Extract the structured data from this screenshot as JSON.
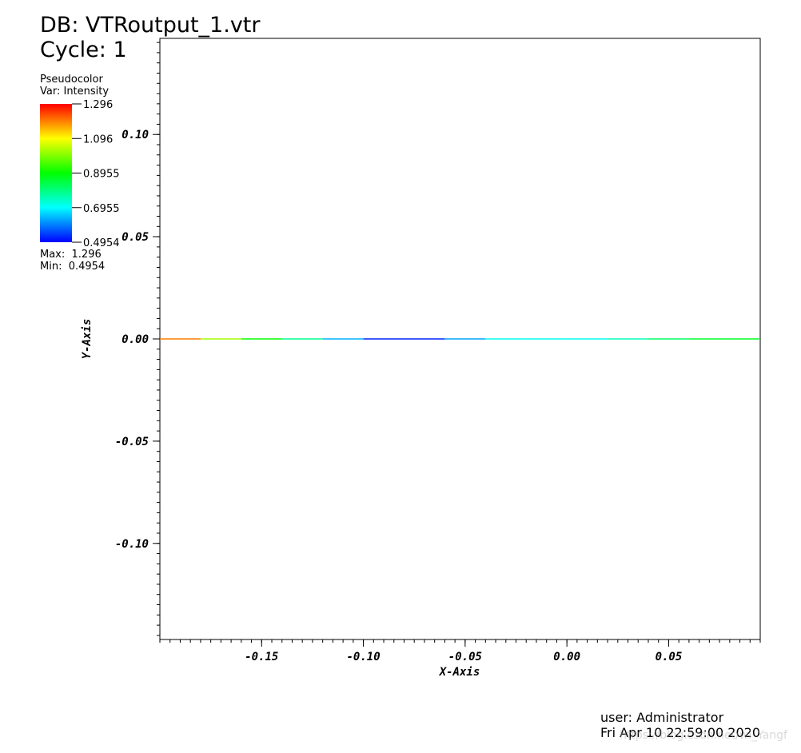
{
  "header": {
    "db_line": "DB: VTRoutput_1.vtr",
    "cycle_line": "Cycle: 1"
  },
  "legend": {
    "plot_type": "Pseudocolor",
    "variable": "Var: Intensity",
    "ticks": [
      "1.296",
      "1.096",
      "0.8955",
      "0.6955",
      "0.4954"
    ],
    "max_line": "Max:  1.296",
    "min_line": "Min:  0.4954",
    "colormap": [
      "#0000ff",
      "#00ffff",
      "#00ff00",
      "#ffff00",
      "#ff0000"
    ]
  },
  "footer": {
    "user": "user: Administrator",
    "date": "Fri Apr 10 22:59:00 2020",
    "watermark": "https://blog.csdn.net/wi_Yangf"
  },
  "chart_data": {
    "type": "line",
    "title": "",
    "xlabel": "X-Axis",
    "ylabel": "Y-Axis",
    "xlim": [
      -0.2,
      0.095
    ],
    "ylim": [
      -0.147,
      0.147
    ],
    "xticks": [
      -0.15,
      -0.1,
      -0.05,
      0.0,
      0.05
    ],
    "xtick_labels": [
      "-0.15",
      "-0.10",
      "-0.05",
      "0.00",
      "0.05"
    ],
    "yticks": [
      0.1,
      0.05,
      0.0,
      -0.05,
      -0.1
    ],
    "ytick_labels": [
      "0.10",
      "0.05",
      "0.00",
      "-0.05",
      "-0.10"
    ],
    "grid": false,
    "series": [
      {
        "x": [
          -0.2,
          -0.18,
          -0.16,
          -0.14,
          -0.12,
          -0.1,
          -0.08,
          -0.06,
          -0.04,
          -0.02,
          0.0,
          0.02,
          0.04,
          0.06,
          0.08,
          0.095
        ],
        "y": [
          0,
          0,
          0,
          0,
          0,
          0,
          0,
          0,
          0,
          0,
          0,
          0,
          0,
          0,
          0,
          0
        ],
        "intensity": [
          1.296,
          1.096,
          0.95,
          0.85,
          0.72,
          0.55,
          0.4954,
          0.55,
          0.7,
          0.72,
          0.7,
          0.72,
          0.78,
          0.85,
          0.88,
          0.86
        ]
      }
    ]
  }
}
